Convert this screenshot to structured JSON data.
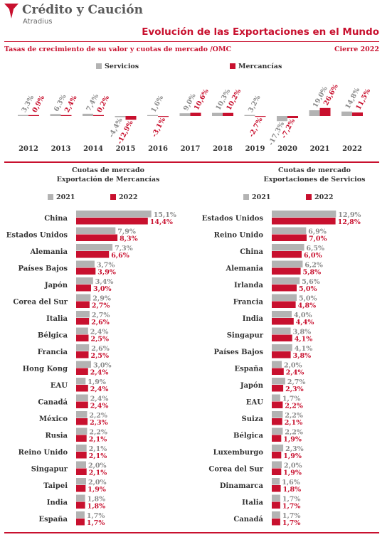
{
  "brand": {
    "name": "Crédito y Caución",
    "sub": "Atradius"
  },
  "header": {
    "title": "Evolución de las Exportaciones en el Mundo",
    "subtitle": "Tasas de crecimiento de su valor y cuotas de mercado /OMC",
    "period": "Cierre 2022"
  },
  "colors": {
    "services": "#b3b3b3",
    "goods": "#c8102e",
    "accent": "#c8102e"
  },
  "chart_data": [
    {
      "type": "bar",
      "categories": [
        "2012",
        "2013",
        "2014",
        "2015",
        "2016",
        "2017",
        "2018",
        "2019",
        "2020",
        "2021",
        "2022"
      ],
      "series": [
        {
          "name": "Servicios",
          "values": [
            3.3,
            6.3,
            7.4,
            -4.4,
            1.6,
            9.0,
            10.3,
            3.2,
            -17.3,
            19.0,
            14.8
          ],
          "labels": [
            "3,3%",
            "6,3%",
            "7,4%",
            "-4,4%",
            "1,6%",
            "9,0%",
            "10,3%",
            "3,2%",
            "-17,3%",
            "19,0%",
            "14,8%"
          ]
        },
        {
          "name": "Mercancías",
          "values": [
            0.9,
            2.4,
            0.2,
            -12.9,
            -3.1,
            10.6,
            10.2,
            -2.7,
            -7.2,
            26.6,
            11.5
          ],
          "labels": [
            "0,9%",
            "2,4%",
            "0,2%",
            "-12,9%",
            "-3,1%",
            "10,6%",
            "10,2%",
            "-2,7%",
            "-7,2%",
            "26,6%",
            "11,5%"
          ]
        }
      ]
    },
    {
      "type": "bar",
      "orientation": "horizontal",
      "title": [
        "Cuotas de mercado",
        "Exportación de Mercancías"
      ],
      "categories": [
        "China",
        "Estados Unidos",
        "Alemania",
        "Países Bajos",
        "Japón",
        "Corea del Sur",
        "Italia",
        "Bélgica",
        "Francia",
        "Hong Kong",
        "EAU",
        "Canadá",
        "México",
        "Rusia",
        "Reino Unido",
        "Singapur",
        "Taipei",
        "India",
        "España"
      ],
      "series": [
        {
          "name": "2021",
          "values": [
            15.1,
            7.9,
            7.3,
            3.7,
            3.4,
            2.9,
            2.7,
            2.4,
            2.6,
            3.0,
            1.9,
            2.4,
            2.2,
            2.2,
            2.1,
            2.0,
            2.0,
            1.8,
            1.7
          ],
          "labels": [
            "15,1%",
            "7,9%",
            "7,3%",
            "3,7%",
            "3,4%",
            "2,9%",
            "2,7%",
            "2,4%",
            "2,6%",
            "3,0%",
            "1,9%",
            "2,4%",
            "2,2%",
            "2,2%",
            "2,1%",
            "2,0%",
            "2,0%",
            "1,8%",
            "1,7%"
          ]
        },
        {
          "name": "2022",
          "values": [
            14.4,
            8.3,
            6.6,
            3.9,
            3.0,
            2.7,
            2.6,
            2.5,
            2.5,
            2.4,
            2.4,
            2.4,
            2.3,
            2.1,
            2.1,
            2.1,
            1.9,
            1.8,
            1.7
          ],
          "labels": [
            "14,4%",
            "8,3%",
            "6,6%",
            "3,9%",
            "3,0%",
            "2,7%",
            "2,6%",
            "2,5%",
            "2,5%",
            "2,4%",
            "2,4%",
            "2,4%",
            "2,3%",
            "2,1%",
            "2,1%",
            "2,1%",
            "1,9%",
            "1,8%",
            "1,7%"
          ]
        }
      ]
    },
    {
      "type": "bar",
      "orientation": "horizontal",
      "title": [
        "Cuotas de mercado",
        "Exportaciones de Servicios"
      ],
      "categories": [
        "Estados Unidos",
        "Reino Unido",
        "China",
        "Alemania",
        "Irlanda",
        "Francia",
        "India",
        "Singapur",
        "Países Bajos",
        "España",
        "Japón",
        "EAU",
        "Suiza",
        "Bélgica",
        "Luxemburgo",
        "Corea del Sur",
        "Dinamarca",
        "Italia",
        "Canadá"
      ],
      "series": [
        {
          "name": "2021",
          "values": [
            12.9,
            6.9,
            6.5,
            6.2,
            5.6,
            5.0,
            4.0,
            3.8,
            4.1,
            2.0,
            2.7,
            1.7,
            2.2,
            2.2,
            2.3,
            2.0,
            1.6,
            1.7,
            1.7
          ],
          "labels": [
            "12,9%",
            "6,9%",
            "6,5%",
            "6,2%",
            "5,6%",
            "5,0%",
            "4,0%",
            "3,8%",
            "4,1%",
            "2,0%",
            "2,7%",
            "1,7%",
            "2,2%",
            "2,2%",
            "2,3%",
            "2,0%",
            "1,6%",
            "1,7%",
            "1,7%"
          ]
        },
        {
          "name": "2022",
          "values": [
            12.8,
            7.0,
            6.0,
            5.8,
            5.0,
            4.8,
            4.4,
            4.1,
            3.8,
            2.4,
            2.3,
            2.2,
            2.1,
            1.9,
            1.9,
            1.9,
            1.8,
            1.7,
            1.7
          ],
          "labels": [
            "12,8%",
            "7,0%",
            "6,0%",
            "5,8%",
            "5,0%",
            "4,8%",
            "4,4%",
            "4,1%",
            "3,8%",
            "2,4%",
            "2,3%",
            "2,2%",
            "2,1%",
            "1,9%",
            "1,9%",
            "1,9%",
            "1,8%",
            "1,7%",
            "1,7%"
          ]
        }
      ]
    }
  ]
}
